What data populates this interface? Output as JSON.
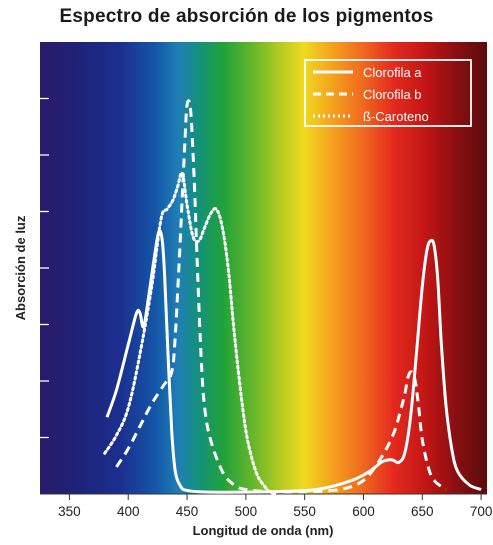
{
  "chart_data": {
    "type": "line",
    "title": "Espectro de absorción de los pigmentos",
    "xlabel": "Longitud de onda (nm)",
    "ylabel": "Absorción de luz",
    "xlim": [
      325,
      705
    ],
    "ylim": [
      0,
      1.0
    ],
    "xticks": [
      350,
      400,
      450,
      500,
      550,
      600,
      650,
      700
    ],
    "y_tick_count": 7,
    "y_tick_labels_shown": false,
    "background": "visible light spectrum gradient (violet → blue → green → yellow → red)",
    "legend": {
      "position": "top-right",
      "style": "outlined box on dark background"
    },
    "series": [
      {
        "name": "Clorofila a",
        "line_style": "solid",
        "color": "#ffffff",
        "x": [
          382,
          390,
          400,
          407,
          410,
          413,
          417,
          422,
          426,
          429,
          431,
          434,
          437,
          440,
          445,
          450,
          460,
          480,
          520,
          560,
          590,
          605,
          615,
          620,
          625,
          630,
          635,
          640,
          645,
          650,
          654,
          657,
          660,
          663,
          666,
          670,
          675,
          680,
          690,
          700
        ],
        "y": [
          0.17,
          0.23,
          0.33,
          0.4,
          0.4,
          0.37,
          0.43,
          0.52,
          0.58,
          0.56,
          0.48,
          0.3,
          0.14,
          0.05,
          0.015,
          0.008,
          0.005,
          0.004,
          0.005,
          0.01,
          0.03,
          0.05,
          0.07,
          0.075,
          0.075,
          0.07,
          0.09,
          0.17,
          0.31,
          0.46,
          0.54,
          0.56,
          0.55,
          0.48,
          0.34,
          0.2,
          0.1,
          0.05,
          0.02,
          0.01
        ]
      },
      {
        "name": "Clorofila b",
        "line_style": "dashed",
        "color": "#ffffff",
        "x": [
          390,
          400,
          410,
          420,
          430,
          437,
          440,
          444,
          448,
          450,
          453,
          456,
          459,
          462,
          465,
          470,
          480,
          490,
          500,
          520,
          550,
          580,
          600,
          615,
          625,
          630,
          635,
          638,
          641,
          644,
          647,
          650,
          655,
          660,
          670
        ],
        "y": [
          0.06,
          0.1,
          0.15,
          0.2,
          0.24,
          0.27,
          0.35,
          0.55,
          0.77,
          0.86,
          0.85,
          0.7,
          0.49,
          0.3,
          0.19,
          0.12,
          0.05,
          0.02,
          0.01,
          0.005,
          0.005,
          0.01,
          0.03,
          0.08,
          0.13,
          0.17,
          0.22,
          0.26,
          0.27,
          0.25,
          0.19,
          0.12,
          0.06,
          0.03,
          0.01
        ]
      },
      {
        "name": "ß-Caroteno",
        "line_style": "dotted",
        "color": "#ffffff",
        "x": [
          380,
          390,
          400,
          410,
          420,
          428,
          433,
          438,
          442,
          446,
          450,
          455,
          460,
          465,
          470,
          475,
          480,
          485,
          490,
          495,
          500,
          505,
          510,
          515,
          520,
          525
        ],
        "y": [
          0.09,
          0.13,
          0.19,
          0.31,
          0.46,
          0.61,
          0.63,
          0.65,
          0.68,
          0.71,
          0.64,
          0.57,
          0.56,
          0.59,
          0.62,
          0.63,
          0.59,
          0.5,
          0.36,
          0.24,
          0.14,
          0.08,
          0.04,
          0.02,
          0.005,
          0.0
        ]
      }
    ]
  }
}
